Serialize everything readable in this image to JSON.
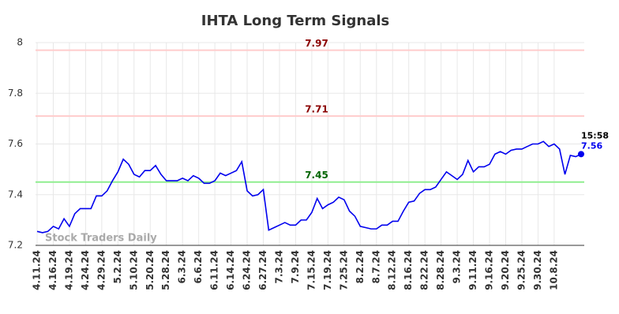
{
  "chart_data": {
    "type": "line",
    "title": "IHTA Long Term Signals",
    "watermark": "Stock Traders Daily",
    "categories": [
      "4.11.24",
      null,
      null,
      "4.16.24",
      null,
      null,
      "4.19.24",
      null,
      null,
      "4.24.24",
      null,
      null,
      "4.29.24",
      null,
      null,
      "5.2.24",
      null,
      null,
      "5.10.24",
      null,
      null,
      "5.20.24",
      null,
      null,
      "5.28.24",
      null,
      null,
      "6.3.24",
      null,
      null,
      "6.6.24",
      null,
      null,
      "6.11.24",
      null,
      null,
      "6.14.24",
      null,
      null,
      "6.24.24",
      null,
      null,
      "6.27.24",
      null,
      null,
      "7.3.24",
      null,
      null,
      "7.9.24",
      null,
      null,
      "7.15.24",
      null,
      null,
      "7.19.24",
      null,
      null,
      "7.25.24",
      null,
      null,
      "8.2.24",
      null,
      null,
      "8.7.24",
      null,
      null,
      "8.12.24",
      null,
      null,
      "8.16.24",
      null,
      null,
      "8.22.24",
      null,
      null,
      "8.28.24",
      null,
      null,
      "9.3.24",
      null,
      null,
      "9.11.24",
      null,
      null,
      "9.16.24",
      null,
      null,
      "9.20.24",
      null,
      null,
      "9.25.24",
      null,
      null,
      "9.30.24",
      null,
      null,
      "10.8.24",
      null,
      null,
      null,
      null,
      null
    ],
    "series": [
      {
        "name": "IHTA",
        "color": "#0000ee",
        "values": [
          7.255,
          7.25,
          7.255,
          7.275,
          7.265,
          7.305,
          7.275,
          7.325,
          7.345,
          7.345,
          7.345,
          7.395,
          7.395,
          7.415,
          7.455,
          7.49,
          7.54,
          7.52,
          7.48,
          7.47,
          7.495,
          7.495,
          7.515,
          7.48,
          7.455,
          7.455,
          7.455,
          7.465,
          7.455,
          7.475,
          7.465,
          7.445,
          7.445,
          7.455,
          7.485,
          7.475,
          7.485,
          7.495,
          7.53,
          7.415,
          7.395,
          7.4,
          7.42,
          7.26,
          7.27,
          7.28,
          7.29,
          7.28,
          7.28,
          7.3,
          7.3,
          7.33,
          7.385,
          7.345,
          7.36,
          7.37,
          7.39,
          7.38,
          7.335,
          7.315,
          7.275,
          7.27,
          7.265,
          7.265,
          7.28,
          7.28,
          7.295,
          7.295,
          7.335,
          7.37,
          7.375,
          7.405,
          7.42,
          7.42,
          7.43,
          7.46,
          7.49,
          7.475,
          7.46,
          7.48,
          7.535,
          7.49,
          7.51,
          7.51,
          7.52,
          7.56,
          7.57,
          7.56,
          7.575,
          7.58,
          7.58,
          7.59,
          7.6,
          7.6,
          7.61,
          7.59,
          7.6,
          7.58,
          7.48,
          7.555,
          7.55,
          7.56
        ]
      }
    ],
    "last_label": {
      "time": "15:58",
      "value": 7.56
    },
    "reference_lines": [
      {
        "value": 7.97,
        "color": "#ffcccc",
        "label_color": "#8b0000"
      },
      {
        "value": 7.71,
        "color": "#ffcccc",
        "label_color": "#8b0000"
      },
      {
        "value": 7.45,
        "color": "#90ee90",
        "label_color": "#006400"
      }
    ],
    "ylim": [
      7.2,
      8.0
    ],
    "yticks": [
      7.2,
      7.4,
      7.6,
      7.8,
      8
    ],
    "grid": true
  }
}
